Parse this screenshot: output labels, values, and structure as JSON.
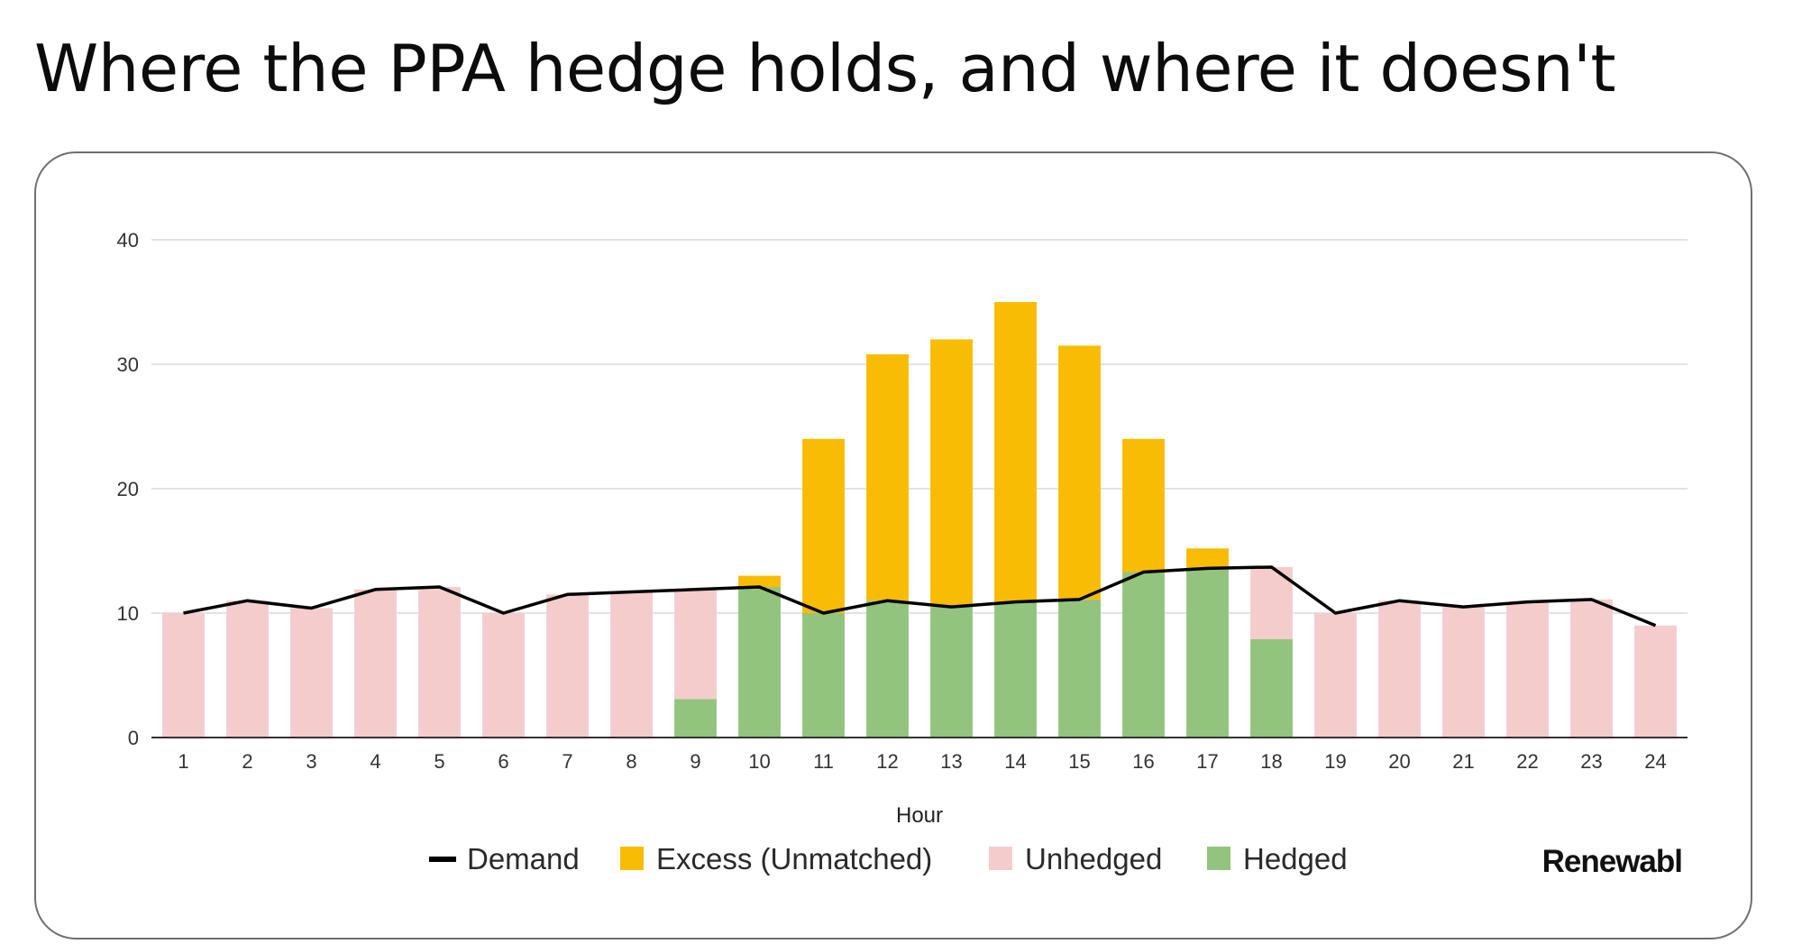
{
  "page": {
    "title": "Where the PPA hedge holds, and where it doesn't"
  },
  "brand": {
    "name": "Renewabl"
  },
  "chart_data": {
    "type": "bar",
    "stacked": true,
    "xlabel": "Hour",
    "ylabel": "",
    "ylim": [
      0,
      40
    ],
    "yticks": [
      0,
      10,
      20,
      30,
      40
    ],
    "grid": true,
    "legend_position": "bottom",
    "categories": [
      "1",
      "2",
      "3",
      "4",
      "5",
      "6",
      "7",
      "8",
      "9",
      "10",
      "11",
      "12",
      "13",
      "14",
      "15",
      "16",
      "17",
      "18",
      "19",
      "20",
      "21",
      "22",
      "23",
      "24"
    ],
    "series": [
      {
        "name": "Hedged",
        "kind": "bar",
        "color": "#93c47d",
        "values": [
          0,
          0,
          0,
          0,
          0,
          0,
          0,
          0,
          3.1,
          12.1,
          10,
          11,
          10.5,
          10.9,
          11.1,
          13.3,
          13.6,
          7.9,
          0,
          0,
          0,
          0,
          0,
          0
        ]
      },
      {
        "name": "Unhedged",
        "kind": "bar",
        "color": "#f4cccc",
        "values": [
          10,
          11,
          10.4,
          11.9,
          12.1,
          10,
          11.5,
          11.7,
          8.8,
          0,
          0,
          0,
          0,
          0,
          0,
          0,
          0,
          5.8,
          10,
          11,
          10.5,
          10.9,
          11.1,
          9
        ]
      },
      {
        "name": "Excess (Unmatched)",
        "kind": "bar",
        "color": "#f9bc04",
        "values": [
          0,
          0,
          0,
          0,
          0,
          0,
          0,
          0,
          0,
          0.9,
          14,
          19.8,
          21.5,
          24.1,
          20.4,
          10.7,
          1.6,
          0,
          0,
          0,
          0,
          0,
          0,
          0
        ]
      },
      {
        "name": "Demand",
        "kind": "line",
        "color": "#000000",
        "values": [
          10,
          11,
          10.4,
          11.9,
          12.1,
          10,
          11.5,
          11.7,
          11.9,
          12.1,
          10,
          11,
          10.5,
          10.9,
          11.1,
          13.3,
          13.6,
          13.7,
          10,
          11,
          10.5,
          10.9,
          11.1,
          9
        ]
      }
    ],
    "legend": [
      "Demand",
      "Excess (Unmatched)",
      "Unhedged",
      "Hedged"
    ]
  }
}
